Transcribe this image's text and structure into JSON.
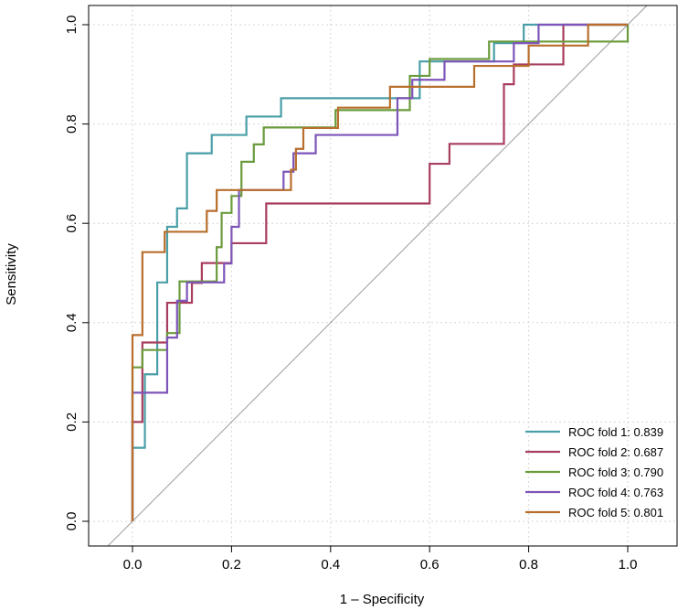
{
  "chart_data": {
    "type": "line",
    "title": "",
    "xlabel": "1 – Specificity",
    "ylabel": "Sensitivity",
    "xlim": [
      -0.1,
      1.1
    ],
    "ylim": [
      0.0,
      1.0
    ],
    "x_ticks": [
      "0.0",
      "0.2",
      "0.4",
      "0.6",
      "0.8",
      "1.0"
    ],
    "y_ticks": [
      "0.0",
      "0.2",
      "0.4",
      "0.6",
      "0.8",
      "1.0"
    ],
    "grid": true,
    "legend_position": "bottom-right",
    "reference_line": "diagonal",
    "series": [
      {
        "name": "ROC fold 1: 0.839",
        "color": "#4a9ea8",
        "points": [
          [
            0,
            0
          ],
          [
            0,
            0.148
          ],
          [
            0.025,
            0.148
          ],
          [
            0.025,
            0.296
          ],
          [
            0.05,
            0.296
          ],
          [
            0.05,
            0.481
          ],
          [
            0.07,
            0.481
          ],
          [
            0.07,
            0.593
          ],
          [
            0.09,
            0.593
          ],
          [
            0.09,
            0.63
          ],
          [
            0.11,
            0.63
          ],
          [
            0.11,
            0.741
          ],
          [
            0.16,
            0.741
          ],
          [
            0.16,
            0.778
          ],
          [
            0.23,
            0.778
          ],
          [
            0.23,
            0.815
          ],
          [
            0.3,
            0.815
          ],
          [
            0.3,
            0.852
          ],
          [
            0.58,
            0.852
          ],
          [
            0.58,
            0.926
          ],
          [
            0.73,
            0.926
          ],
          [
            0.73,
            0.963
          ],
          [
            0.79,
            0.963
          ],
          [
            0.79,
            1.0
          ],
          [
            1.0,
            1.0
          ]
        ]
      },
      {
        "name": "ROC fold 2: 0.687",
        "color": "#a83e5e",
        "points": [
          [
            0,
            0
          ],
          [
            0,
            0.2
          ],
          [
            0.02,
            0.2
          ],
          [
            0.02,
            0.36
          ],
          [
            0.07,
            0.36
          ],
          [
            0.07,
            0.44
          ],
          [
            0.12,
            0.44
          ],
          [
            0.12,
            0.48
          ],
          [
            0.14,
            0.48
          ],
          [
            0.14,
            0.52
          ],
          [
            0.2,
            0.52
          ],
          [
            0.2,
            0.56
          ],
          [
            0.27,
            0.56
          ],
          [
            0.27,
            0.64
          ],
          [
            0.6,
            0.64
          ],
          [
            0.6,
            0.72
          ],
          [
            0.64,
            0.72
          ],
          [
            0.64,
            0.76
          ],
          [
            0.75,
            0.76
          ],
          [
            0.75,
            0.88
          ],
          [
            0.77,
            0.88
          ],
          [
            0.77,
            0.92
          ],
          [
            0.87,
            0.92
          ],
          [
            0.87,
            1.0
          ],
          [
            1.0,
            1.0
          ]
        ]
      },
      {
        "name": "ROC fold 3: 0.790",
        "color": "#6a9b3c",
        "points": [
          [
            0,
            0
          ],
          [
            0,
            0.31
          ],
          [
            0.02,
            0.31
          ],
          [
            0.02,
            0.345
          ],
          [
            0.07,
            0.345
          ],
          [
            0.07,
            0.379
          ],
          [
            0.095,
            0.379
          ],
          [
            0.095,
            0.483
          ],
          [
            0.17,
            0.483
          ],
          [
            0.17,
            0.552
          ],
          [
            0.18,
            0.552
          ],
          [
            0.18,
            0.621
          ],
          [
            0.2,
            0.621
          ],
          [
            0.2,
            0.655
          ],
          [
            0.22,
            0.655
          ],
          [
            0.22,
            0.724
          ],
          [
            0.245,
            0.724
          ],
          [
            0.245,
            0.759
          ],
          [
            0.265,
            0.759
          ],
          [
            0.265,
            0.793
          ],
          [
            0.41,
            0.793
          ],
          [
            0.41,
            0.828
          ],
          [
            0.56,
            0.828
          ],
          [
            0.56,
            0.897
          ],
          [
            0.6,
            0.897
          ],
          [
            0.6,
            0.931
          ],
          [
            0.72,
            0.931
          ],
          [
            0.72,
            0.966
          ],
          [
            1.0,
            0.966
          ],
          [
            1.0,
            1.0
          ]
        ]
      },
      {
        "name": "ROC fold 4: 0.763",
        "color": "#7d55b8",
        "points": [
          [
            0,
            0
          ],
          [
            0,
            0.259
          ],
          [
            0.07,
            0.259
          ],
          [
            0.07,
            0.37
          ],
          [
            0.09,
            0.37
          ],
          [
            0.09,
            0.444
          ],
          [
            0.11,
            0.444
          ],
          [
            0.11,
            0.481
          ],
          [
            0.185,
            0.481
          ],
          [
            0.185,
            0.519
          ],
          [
            0.2,
            0.519
          ],
          [
            0.2,
            0.593
          ],
          [
            0.215,
            0.593
          ],
          [
            0.215,
            0.667
          ],
          [
            0.305,
            0.667
          ],
          [
            0.305,
            0.704
          ],
          [
            0.325,
            0.704
          ],
          [
            0.325,
            0.741
          ],
          [
            0.37,
            0.741
          ],
          [
            0.37,
            0.778
          ],
          [
            0.535,
            0.778
          ],
          [
            0.535,
            0.852
          ],
          [
            0.565,
            0.852
          ],
          [
            0.565,
            0.889
          ],
          [
            0.63,
            0.889
          ],
          [
            0.63,
            0.926
          ],
          [
            0.77,
            0.926
          ],
          [
            0.77,
            0.963
          ],
          [
            0.82,
            0.963
          ],
          [
            0.82,
            1.0
          ],
          [
            1.0,
            1.0
          ]
        ]
      },
      {
        "name": "ROC fold 5: 0.801",
        "color": "#b86e2c",
        "points": [
          [
            0,
            0
          ],
          [
            0,
            0.375
          ],
          [
            0.02,
            0.375
          ],
          [
            0.02,
            0.542
          ],
          [
            0.065,
            0.542
          ],
          [
            0.065,
            0.583
          ],
          [
            0.15,
            0.583
          ],
          [
            0.15,
            0.625
          ],
          [
            0.17,
            0.625
          ],
          [
            0.17,
            0.667
          ],
          [
            0.32,
            0.667
          ],
          [
            0.32,
            0.708
          ],
          [
            0.33,
            0.708
          ],
          [
            0.33,
            0.75
          ],
          [
            0.345,
            0.75
          ],
          [
            0.345,
            0.792
          ],
          [
            0.415,
            0.792
          ],
          [
            0.415,
            0.833
          ],
          [
            0.52,
            0.833
          ],
          [
            0.52,
            0.875
          ],
          [
            0.69,
            0.875
          ],
          [
            0.69,
            0.917
          ],
          [
            0.8,
            0.917
          ],
          [
            0.8,
            0.958
          ],
          [
            0.92,
            0.958
          ],
          [
            0.92,
            1.0
          ],
          [
            1.0,
            1.0
          ]
        ]
      }
    ]
  }
}
